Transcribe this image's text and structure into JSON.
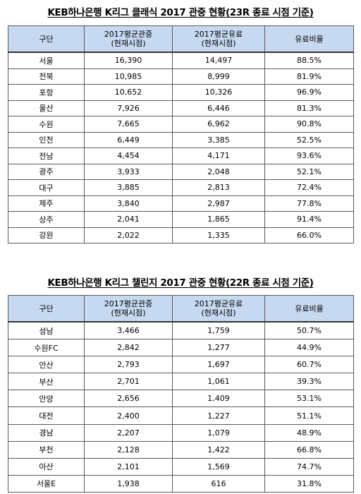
{
  "table1": {
    "title": "KEB하나은행  K리그  클래식  2017  관중  현황(23R  종료  시점  기준)",
    "headers": {
      "region": "구단",
      "avg_attendance_line1": "2017평균관중",
      "avg_attendance_line2": "(현재시점)",
      "avg_paid_line1": "2017평균유료",
      "avg_paid_line2": "(현재시점)",
      "paid_ratio": "유료비율"
    },
    "rows": [
      [
        "서울",
        "16,390",
        "14,497",
        "88.5%"
      ],
      [
        "전북",
        "10,985",
        "8,999",
        "81.9%"
      ],
      [
        "포항",
        "10,652",
        "10,326",
        "96.9%"
      ],
      [
        "울산",
        "7,926",
        "6,446",
        "81.3%"
      ],
      [
        "수원",
        "7,665",
        "6,962",
        "90.8%"
      ],
      [
        "인천",
        "6,449",
        "3,385",
        "52.5%"
      ],
      [
        "전남",
        "4,454",
        "4,171",
        "93.6%"
      ],
      [
        "광주",
        "3,933",
        "2,048",
        "52.1%"
      ],
      [
        "대구",
        "3,885",
        "2,813",
        "72.4%"
      ],
      [
        "제주",
        "3,840",
        "2,987",
        "77.8%"
      ],
      [
        "상주",
        "2,041",
        "1,865",
        "91.4%"
      ],
      [
        "강원",
        "2,022",
        "1,335",
        "66.0%"
      ]
    ]
  },
  "table2": {
    "title": "KEB하나은행  K리그  챌린지  2017  관중  현황(22R  종료  시점  기준)",
    "headers": {
      "region": "구단",
      "avg_attendance_line1": "2017평균관중",
      "avg_attendance_line2": "(현재시점)",
      "avg_paid_line1": "2017평균유료",
      "avg_paid_line2": "(현재시점)",
      "paid_ratio": "유료비율"
    },
    "rows": [
      [
        "성남",
        "3,466",
        "1,759",
        "50.7%"
      ],
      [
        "수원FC",
        "2,842",
        "1,277",
        "44.9%"
      ],
      [
        "안산",
        "2,793",
        "1,697",
        "60.7%"
      ],
      [
        "부산",
        "2,701",
        "1,061",
        "39.3%"
      ],
      [
        "안양",
        "2,656",
        "1,409",
        "53.1%"
      ],
      [
        "대전",
        "2,400",
        "1,227",
        "51.1%"
      ],
      [
        "경남",
        "2,207",
        "1,079",
        "48.9%"
      ],
      [
        "부천",
        "2,128",
        "1,422",
        "66.8%"
      ],
      [
        "아산",
        "2,101",
        "1,569",
        "74.7%"
      ],
      [
        "서울E",
        "1,938",
        "616",
        "31.8%"
      ]
    ]
  },
  "colors": {
    "header_background": "#c6d9f1",
    "border": "#5a5a5a"
  }
}
